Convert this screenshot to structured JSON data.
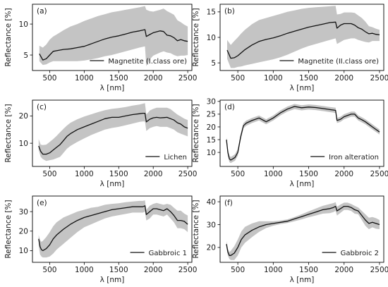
{
  "figure": {
    "ylabel": "Reflectance [%]",
    "xlabel": "λ [nm]",
    "colors": {
      "band": "#c4c4c4",
      "mean": "#111111",
      "axes": "#000000"
    }
  },
  "chart_data": [
    {
      "type": "line",
      "panel": "(a)",
      "legend": "Magnetite (I.class ore)",
      "legend_position": "lower right",
      "xlim": [
        250,
        2560
      ],
      "ylim": [
        2.5,
        13.2
      ],
      "xticks": [
        500,
        1000,
        1500,
        2000,
        2500
      ],
      "yticks": [
        5,
        10
      ],
      "x": [
        350,
        400,
        450,
        500,
        550,
        600,
        700,
        800,
        900,
        1000,
        1100,
        1200,
        1300,
        1400,
        1500,
        1600,
        1700,
        1800,
        1880,
        1900,
        1950,
        2000,
        2100,
        2150,
        2200,
        2250,
        2300,
        2350,
        2400,
        2450,
        2500
      ],
      "mean": [
        5.2,
        4.2,
        4.4,
        5.0,
        5.6,
        5.7,
        5.9,
        6.0,
        6.2,
        6.4,
        6.8,
        7.2,
        7.6,
        7.9,
        8.1,
        8.4,
        8.7,
        8.9,
        9.1,
        8.0,
        8.3,
        8.6,
        8.9,
        8.8,
        8.2,
        8.1,
        7.8,
        7.3,
        7.5,
        7.3,
        7.2
      ],
      "upper": [
        6.5,
        6.2,
        6.7,
        7.5,
        8.0,
        8.3,
        9.0,
        9.6,
        10.0,
        10.5,
        10.9,
        11.3,
        11.6,
        11.9,
        12.1,
        12.3,
        12.5,
        12.7,
        12.9,
        12.3,
        12.1,
        12.0,
        12.3,
        12.5,
        12.1,
        11.8,
        11.5,
        10.6,
        10.3,
        9.9,
        9.6
      ],
      "lower": [
        4.0,
        3.4,
        3.5,
        3.8,
        4.0,
        4.0,
        4.0,
        4.0,
        4.0,
        4.1,
        4.3,
        4.5,
        4.8,
        5.0,
        5.3,
        5.6,
        5.9,
        6.2,
        6.4,
        3.2,
        4.3,
        4.9,
        5.4,
        5.6,
        5.4,
        5.3,
        5.0,
        4.8,
        4.9,
        4.9,
        5.0
      ]
    },
    {
      "type": "line",
      "panel": "(b)",
      "legend": "Magnetite (II.class ore)",
      "legend_position": "lower right",
      "xlim": [
        250,
        2560
      ],
      "ylim": [
        3.5,
        16.5
      ],
      "xticks": [
        500,
        1000,
        1500,
        2000,
        2500
      ],
      "yticks": [
        5,
        10,
        15
      ],
      "x": [
        350,
        400,
        450,
        500,
        550,
        600,
        700,
        800,
        900,
        1000,
        1100,
        1200,
        1300,
        1400,
        1500,
        1600,
        1700,
        1800,
        1880,
        1900,
        1950,
        2000,
        2100,
        2150,
        2200,
        2250,
        2300,
        2350,
        2400,
        2450,
        2500
      ],
      "mean": [
        7.5,
        5.9,
        6.0,
        6.4,
        7.0,
        7.6,
        8.5,
        9.2,
        9.6,
        9.9,
        10.3,
        10.8,
        11.2,
        11.6,
        12.0,
        12.3,
        12.6,
        12.9,
        13.0,
        11.8,
        12.4,
        12.7,
        12.7,
        12.4,
        11.9,
        11.6,
        11.1,
        10.7,
        10.8,
        10.6,
        10.5
      ],
      "upper": [
        9.5,
        8.5,
        9.3,
        10.0,
        10.8,
        11.5,
        12.6,
        13.4,
        13.8,
        14.2,
        14.6,
        15.0,
        15.3,
        15.6,
        15.8,
        15.9,
        16.0,
        16.1,
        16.2,
        14.5,
        14.6,
        14.9,
        14.9,
        14.8,
        14.3,
        13.8,
        13.1,
        12.2,
        12.0,
        11.7,
        11.5
      ],
      "lower": [
        5.8,
        4.0,
        4.0,
        4.2,
        4.3,
        4.5,
        4.8,
        5.1,
        5.4,
        5.7,
        6.1,
        6.6,
        7.2,
        7.8,
        8.3,
        8.7,
        9.1,
        9.5,
        9.8,
        8.7,
        9.1,
        9.5,
        9.8,
        9.8,
        9.5,
        9.3,
        9.1,
        9.0,
        9.3,
        9.3,
        9.3
      ]
    },
    {
      "type": "line",
      "panel": "(c)",
      "legend": "Lichen",
      "legend_position": "lower right",
      "xlim": [
        250,
        2560
      ],
      "ylim": [
        1.5,
        25.8
      ],
      "xticks": [
        500,
        1000,
        1500,
        2000,
        2500
      ],
      "yticks": [
        10,
        20
      ],
      "x": [
        340,
        370,
        400,
        450,
        500,
        550,
        600,
        650,
        700,
        750,
        800,
        900,
        1000,
        1100,
        1200,
        1300,
        1400,
        1500,
        1600,
        1700,
        1800,
        1850,
        1880,
        1900,
        1950,
        2000,
        2050,
        2100,
        2150,
        2200,
        2250,
        2300,
        2350,
        2400,
        2450,
        2500
      ],
      "mean": [
        9.0,
        7.0,
        6.0,
        6.0,
        6.5,
        7.5,
        8.5,
        9.5,
        11.0,
        12.5,
        13.5,
        15.0,
        16.0,
        17.0,
        18.0,
        19.0,
        19.5,
        19.5,
        20.0,
        20.5,
        20.8,
        21.0,
        21.0,
        17.8,
        18.8,
        19.3,
        19.5,
        19.3,
        19.4,
        19.5,
        19.0,
        18.5,
        17.5,
        17.0,
        16.0,
        15.5
      ],
      "upper": [
        11.5,
        9.5,
        9.3,
        9.5,
        10.5,
        11.5,
        12.7,
        14.0,
        15.3,
        16.5,
        17.5,
        18.8,
        19.8,
        20.6,
        21.4,
        22.1,
        22.6,
        22.9,
        23.3,
        23.8,
        24.2,
        24.5,
        24.7,
        20.5,
        22.0,
        22.6,
        23.0,
        23.0,
        23.0,
        23.0,
        22.5,
        21.5,
        20.5,
        19.8,
        19.0,
        18.5
      ],
      "lower": [
        7.5,
        5.0,
        4.2,
        3.5,
        3.8,
        4.0,
        4.5,
        5.0,
        6.5,
        8.0,
        9.0,
        10.5,
        11.8,
        13.0,
        14.0,
        15.0,
        15.6,
        16.0,
        16.6,
        17.2,
        17.8,
        18.0,
        18.0,
        14.5,
        15.5,
        16.0,
        16.3,
        16.0,
        16.0,
        16.0,
        15.5,
        15.0,
        14.0,
        13.5,
        13.0,
        12.5
      ]
    },
    {
      "type": "line",
      "panel": "(d)",
      "legend": "Iron alteration",
      "legend_position": "lower right",
      "xlim": [
        250,
        2560
      ],
      "ylim": [
        4.5,
        30.5
      ],
      "xticks": [
        500,
        1000,
        1500,
        2000,
        2500
      ],
      "yticks": [
        10,
        15,
        20,
        25,
        30
      ],
      "x": [
        340,
        360,
        380,
        400,
        430,
        460,
        500,
        540,
        580,
        620,
        700,
        800,
        900,
        1000,
        1100,
        1200,
        1300,
        1400,
        1500,
        1600,
        1700,
        1800,
        1880,
        1900,
        1950,
        2000,
        2100,
        2150,
        2200,
        2250,
        2300,
        2350,
        2400,
        2450,
        2500
      ],
      "mean": [
        15.0,
        10.0,
        7.5,
        7.0,
        7.5,
        8.0,
        10.0,
        16.0,
        20.5,
        21.5,
        22.5,
        23.5,
        22.0,
        23.5,
        25.5,
        27.0,
        28.0,
        27.5,
        27.8,
        27.6,
        27.2,
        26.8,
        26.5,
        22.5,
        23.0,
        24.0,
        25.0,
        25.0,
        23.5,
        22.8,
        22.0,
        21.0,
        20.0,
        19.0,
        18.0
      ],
      "upper": [
        16.0,
        11.3,
        8.8,
        8.2,
        8.7,
        9.3,
        11.3,
        17.2,
        21.5,
        22.5,
        23.5,
        24.5,
        23.0,
        24.5,
        26.5,
        28.0,
        29.0,
        28.5,
        28.8,
        28.6,
        28.2,
        27.8,
        27.5,
        23.5,
        24.0,
        25.0,
        26.0,
        26.0,
        24.5,
        23.8,
        23.0,
        22.0,
        21.0,
        20.0,
        19.0
      ],
      "lower": [
        14.0,
        8.7,
        6.2,
        5.8,
        6.3,
        6.7,
        8.7,
        14.8,
        19.5,
        20.5,
        21.5,
        22.5,
        21.0,
        22.5,
        24.5,
        26.0,
        27.0,
        26.5,
        26.8,
        26.6,
        26.2,
        25.8,
        25.5,
        21.5,
        22.0,
        23.0,
        24.0,
        24.0,
        22.5,
        21.8,
        21.0,
        20.0,
        19.0,
        18.0,
        17.0
      ]
    },
    {
      "type": "line",
      "panel": "(e)",
      "legend": "Gabbroic 1",
      "legend_position": "lower right",
      "xlim": [
        250,
        2560
      ],
      "ylim": [
        4.0,
        38.0
      ],
      "xticks": [
        500,
        1000,
        1500,
        2000,
        2500
      ],
      "yticks": [
        10,
        20,
        30
      ],
      "x": [
        340,
        360,
        380,
        400,
        450,
        500,
        550,
        600,
        700,
        800,
        900,
        1000,
        1100,
        1200,
        1300,
        1400,
        1500,
        1600,
        1700,
        1800,
        1850,
        1880,
        1900,
        1950,
        2000,
        2050,
        2100,
        2150,
        2200,
        2250,
        2300,
        2350,
        2400,
        2450,
        2500
      ],
      "mean": [
        16.0,
        12.0,
        10.5,
        10.0,
        11.0,
        13.0,
        16.0,
        18.0,
        21.0,
        23.5,
        25.5,
        27.0,
        28.0,
        29.0,
        30.0,
        31.0,
        31.5,
        32.0,
        32.5,
        32.5,
        32.5,
        33.0,
        28.5,
        30.0,
        31.5,
        31.5,
        31.0,
        30.5,
        31.5,
        30.0,
        28.0,
        25.5,
        25.5,
        25.0,
        23.5
      ],
      "upper": [
        18.0,
        15.5,
        14.5,
        15.0,
        17.0,
        19.5,
        22.5,
        24.5,
        27.0,
        28.5,
        30.0,
        31.0,
        32.0,
        32.5,
        33.5,
        34.0,
        34.3,
        34.8,
        35.2,
        35.5,
        35.5,
        35.8,
        31.0,
        33.0,
        34.0,
        34.5,
        34.0,
        33.5,
        34.0,
        33.5,
        32.0,
        30.5,
        30.5,
        29.0,
        28.0
      ],
      "lower": [
        12.5,
        8.0,
        7.0,
        6.5,
        6.5,
        7.0,
        8.5,
        10.5,
        13.5,
        16.5,
        19.5,
        22.0,
        23.5,
        25.0,
        26.5,
        27.5,
        28.2,
        28.8,
        29.5,
        29.5,
        29.5,
        30.0,
        25.5,
        26.5,
        28.5,
        28.5,
        28.0,
        27.5,
        28.5,
        26.5,
        24.5,
        21.5,
        21.5,
        21.0,
        19.5
      ]
    },
    {
      "type": "line",
      "panel": "(f)",
      "legend": "Gabbroic 2",
      "legend_position": "lower right",
      "xlim": [
        250,
        2560
      ],
      "ylim": [
        13.5,
        42.5
      ],
      "xticks": [
        500,
        1000,
        1500,
        2000,
        2500
      ],
      "yticks": [
        20,
        30,
        40
      ],
      "x": [
        340,
        360,
        380,
        400,
        450,
        500,
        550,
        600,
        700,
        800,
        900,
        1000,
        1100,
        1200,
        1300,
        1400,
        1500,
        1600,
        1700,
        1800,
        1850,
        1880,
        1900,
        1950,
        2000,
        2050,
        2100,
        2150,
        2200,
        2250,
        2300,
        2350,
        2400,
        2450,
        2500
      ],
      "mean": [
        21.5,
        18.0,
        16.5,
        16.5,
        17.5,
        20.0,
        23.5,
        25.5,
        27.5,
        29.0,
        30.0,
        30.5,
        31.0,
        31.5,
        32.5,
        33.5,
        34.5,
        35.5,
        36.5,
        37.0,
        37.5,
        38.0,
        36.0,
        37.0,
        38.0,
        38.0,
        37.5,
        36.5,
        36.0,
        34.0,
        32.0,
        30.5,
        31.0,
        30.5,
        30.0
      ],
      "upper": [
        22.8,
        19.5,
        18.0,
        18.5,
        20.5,
        23.5,
        27.0,
        29.0,
        30.5,
        31.5,
        31.5,
        31.5,
        31.8,
        32.3,
        33.3,
        34.5,
        35.8,
        37.0,
        38.2,
        39.0,
        39.4,
        39.8,
        37.8,
        38.8,
        39.6,
        39.6,
        39.0,
        38.2,
        37.5,
        36.0,
        34.5,
        33.0,
        33.3,
        32.8,
        32.0
      ],
      "lower": [
        20.0,
        16.5,
        15.0,
        14.5,
        14.5,
        16.5,
        20.0,
        22.0,
        24.5,
        26.8,
        28.5,
        29.5,
        30.2,
        30.7,
        31.5,
        32.3,
        33.2,
        34.0,
        34.8,
        35.0,
        35.5,
        36.0,
        34.0,
        35.2,
        36.4,
        36.4,
        36.0,
        34.8,
        34.5,
        32.0,
        29.5,
        28.0,
        28.8,
        28.2,
        28.0
      ]
    }
  ]
}
